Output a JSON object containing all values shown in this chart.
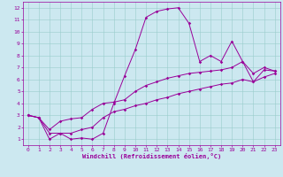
{
  "xlabel": "Windchill (Refroidissement éolien,°C)",
  "xlim": [
    -0.5,
    23.5
  ],
  "ylim": [
    0.5,
    12.5
  ],
  "xticks": [
    0,
    1,
    2,
    3,
    4,
    5,
    6,
    7,
    8,
    9,
    10,
    11,
    12,
    13,
    14,
    15,
    16,
    17,
    18,
    19,
    20,
    21,
    22,
    23
  ],
  "yticks": [
    1,
    2,
    3,
    4,
    5,
    6,
    7,
    8,
    9,
    10,
    11,
    12
  ],
  "bg_color": "#cce8f0",
  "line_color": "#990099",
  "grid_color": "#99cccc",
  "line1_x": [
    0,
    1,
    2,
    3,
    4,
    5,
    6,
    7,
    8,
    9,
    10,
    11,
    12,
    13,
    14,
    15,
    16,
    17,
    18,
    19,
    20,
    21,
    22,
    23
  ],
  "line1_y": [
    3.0,
    2.8,
    1.0,
    1.5,
    1.0,
    1.1,
    1.0,
    1.5,
    4.0,
    6.3,
    8.5,
    11.2,
    11.7,
    11.9,
    12.0,
    10.7,
    7.5,
    8.0,
    7.5,
    9.2,
    7.5,
    5.8,
    6.8,
    6.7
  ],
  "line2_x": [
    0,
    1,
    2,
    3,
    4,
    5,
    6,
    7,
    8,
    9,
    10,
    11,
    12,
    13,
    14,
    15,
    16,
    17,
    18,
    19,
    20,
    21,
    22,
    23
  ],
  "line2_y": [
    3.0,
    2.8,
    1.8,
    2.5,
    2.7,
    2.8,
    3.5,
    4.0,
    4.1,
    4.3,
    5.0,
    5.5,
    5.8,
    6.1,
    6.3,
    6.5,
    6.6,
    6.7,
    6.8,
    7.0,
    7.5,
    6.5,
    7.0,
    6.7
  ],
  "line3_x": [
    0,
    1,
    2,
    3,
    4,
    5,
    6,
    7,
    8,
    9,
    10,
    11,
    12,
    13,
    14,
    15,
    16,
    17,
    18,
    19,
    20,
    21,
    22,
    23
  ],
  "line3_y": [
    3.0,
    2.8,
    1.5,
    1.5,
    1.5,
    1.8,
    2.0,
    2.8,
    3.3,
    3.5,
    3.8,
    4.0,
    4.3,
    4.5,
    4.8,
    5.0,
    5.2,
    5.4,
    5.6,
    5.7,
    6.0,
    5.8,
    6.2,
    6.5
  ],
  "marker_size": 1.8,
  "linewidth": 0.7,
  "xlabel_fontsize": 5.0,
  "tick_fontsize": 4.5
}
